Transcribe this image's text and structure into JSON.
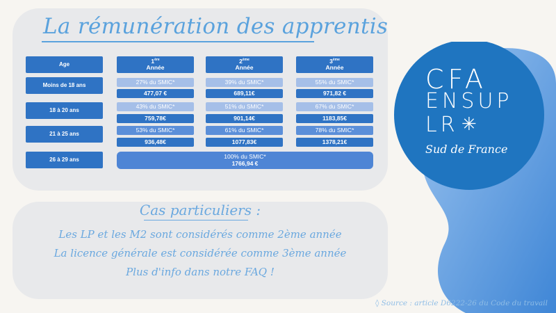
{
  "title": "La rémunération des apprentis",
  "table": {
    "age_header": "Age",
    "columns": [
      {
        "num": "1",
        "sup": "ère",
        "label": "Année"
      },
      {
        "num": "2",
        "sup": "ème",
        "label": "Année"
      },
      {
        "num": "3",
        "sup": "ème",
        "label": "Année"
      }
    ],
    "rows": [
      {
        "age": "Moins de 18 ans",
        "cells": [
          {
            "pct": "27% du SMIC*",
            "amount": "477,07 €"
          },
          {
            "pct": "39% du SMIC*",
            "amount": "689,11€"
          },
          {
            "pct": "55% du SMIC*",
            "amount": "971,82 €"
          }
        ]
      },
      {
        "age": "18 à 20 ans",
        "cells": [
          {
            "pct": "43% du SMIC*",
            "amount": "759,78€"
          },
          {
            "pct": "51% du SMIC*",
            "amount": "901,14€"
          },
          {
            "pct": "67% du SMIC*",
            "amount": "1183,85€"
          }
        ]
      },
      {
        "age": "21 à 25 ans",
        "cells": [
          {
            "pct": "53% du SMIC*",
            "amount": "936,48€"
          },
          {
            "pct": "61% du SMIC*",
            "amount": "1077,83€"
          },
          {
            "pct": "78% du SMIC*",
            "amount": "1378,21€"
          }
        ]
      }
    ],
    "last_row": {
      "age": "26 à 29 ans",
      "pct": "100% du SMIC*",
      "amount": "1766,94 €"
    }
  },
  "cas": {
    "title": "Cas particuliers :",
    "lines": [
      "Les LP et les M2 sont considérés comme 2ème année",
      "La licence générale est considérée comme 3ème année",
      "Plus d'info dans notre FAQ !"
    ]
  },
  "logo": {
    "line1": "CFA",
    "line2": "ENSUP",
    "line3": "LR",
    "subtitle": "Sud de France"
  },
  "source": "◊ Source : article D6222-26 du Code du travail",
  "colors": {
    "dark": "#2f73c4",
    "light": "#a5bfe8",
    "accent": "#5aa2dd",
    "logo_circle": "#1f75c0"
  }
}
